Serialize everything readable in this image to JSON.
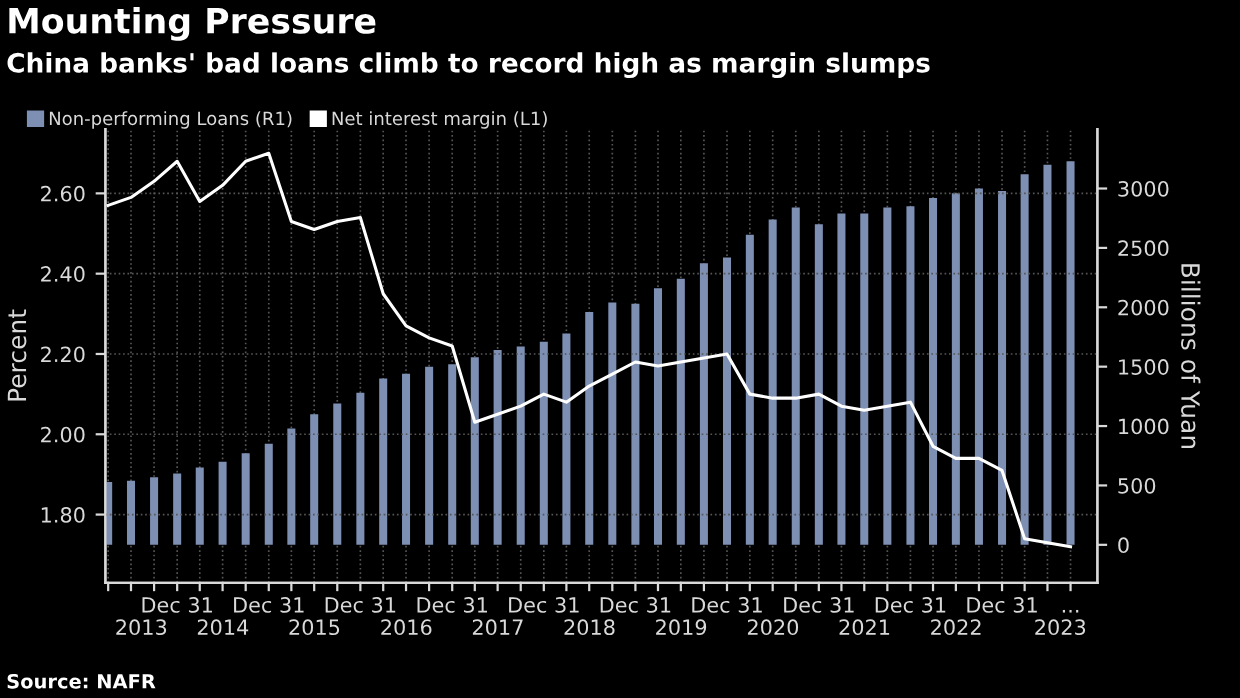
{
  "chart_data": {
    "type": "bar",
    "title": "Mounting Pressure",
    "subtitle": "China banks' bad loans climb to record high as margin slumps",
    "ylabel": "Percent",
    "y2label": "Billions of Yuan",
    "x": [
      "2013-03-31",
      "2013-06-30",
      "2013-09-30",
      "2013-12-31",
      "2014-03-31",
      "2014-06-30",
      "2014-09-30",
      "2014-12-31",
      "2015-03-31",
      "2015-06-30",
      "2015-09-30",
      "2015-12-31",
      "2016-03-31",
      "2016-06-30",
      "2016-09-30",
      "2016-12-31",
      "2017-03-31",
      "2017-06-30",
      "2017-09-30",
      "2017-12-31",
      "2018-03-31",
      "2018-06-30",
      "2018-09-30",
      "2018-12-31",
      "2019-03-31",
      "2019-06-30",
      "2019-09-30",
      "2019-12-31",
      "2020-03-31",
      "2020-06-30",
      "2020-09-30",
      "2020-12-31",
      "2021-03-31",
      "2021-06-30",
      "2021-09-30",
      "2021-12-31",
      "2022-03-31",
      "2022-06-30",
      "2022-09-30",
      "2022-12-31",
      "2023-03-31",
      "2023-06-30",
      "2023-09-30"
    ],
    "series": [
      {
        "name": "Non-performing Loans (R1)",
        "axis": "y2",
        "color": "#7d8fb3",
        "values": [
          530,
          540,
          570,
          600,
          650,
          700,
          770,
          850,
          980,
          1100,
          1190,
          1280,
          1400,
          1440,
          1500,
          1520,
          1580,
          1640,
          1670,
          1710,
          1780,
          1960,
          2040,
          2030,
          2160,
          2240,
          2370,
          2420,
          2610,
          2740,
          2840,
          2700,
          2790,
          2790,
          2840,
          2850,
          2920,
          2960,
          3000,
          2980,
          3120,
          3200,
          3230
        ]
      },
      {
        "name": "Net interest margin (L1)",
        "type": "line",
        "color": "#ffffff",
        "values": [
          2.57,
          2.59,
          2.63,
          2.68,
          2.58,
          2.62,
          2.68,
          2.7,
          2.53,
          2.51,
          2.53,
          2.54,
          2.35,
          2.27,
          2.24,
          2.22,
          2.03,
          2.05,
          2.07,
          2.1,
          2.08,
          2.12,
          2.15,
          2.18,
          2.17,
          2.18,
          2.19,
          2.2,
          2.1,
          2.09,
          2.09,
          2.1,
          2.07,
          2.06,
          2.07,
          2.08,
          1.97,
          1.94,
          1.94,
          1.91,
          1.74,
          1.73,
          1.72
        ]
      }
    ],
    "xlim": [
      "2013-03-20",
      "2024-01-15"
    ],
    "xticks": [
      {
        "value": "2013-03-31",
        "label": null
      },
      {
        "value": "2013-06-30",
        "label": null
      },
      {
        "value": "2013-09-30",
        "label": null
      },
      {
        "value": "2013-12-31",
        "label": "Dec 31"
      },
      {
        "value": "2014-03-31",
        "label": null
      },
      {
        "value": "2014-06-30",
        "label": null
      },
      {
        "value": "2014-09-30",
        "label": null
      },
      {
        "value": "2014-12-31",
        "label": "Dec 31"
      },
      {
        "value": "2015-03-31",
        "label": null
      },
      {
        "value": "2015-06-30",
        "label": null
      },
      {
        "value": "2015-09-30",
        "label": null
      },
      {
        "value": "2015-12-31",
        "label": "Dec 31"
      },
      {
        "value": "2016-03-31",
        "label": null
      },
      {
        "value": "2016-06-30",
        "label": null
      },
      {
        "value": "2016-09-30",
        "label": null
      },
      {
        "value": "2016-12-31",
        "label": "Dec 31"
      },
      {
        "value": "2017-03-31",
        "label": null
      },
      {
        "value": "2017-06-30",
        "label": null
      },
      {
        "value": "2017-09-30",
        "label": null
      },
      {
        "value": "2017-12-31",
        "label": "Dec 31"
      },
      {
        "value": "2018-03-31",
        "label": null
      },
      {
        "value": "2018-06-30",
        "label": null
      },
      {
        "value": "2018-09-30",
        "label": null
      },
      {
        "value": "2018-12-31",
        "label": "Dec 31"
      },
      {
        "value": "2019-03-31",
        "label": null
      },
      {
        "value": "2019-06-30",
        "label": null
      },
      {
        "value": "2019-09-30",
        "label": null
      },
      {
        "value": "2019-12-31",
        "label": "Dec 31"
      },
      {
        "value": "2020-03-31",
        "label": null
      },
      {
        "value": "2020-06-30",
        "label": null
      },
      {
        "value": "2020-09-30",
        "label": null
      },
      {
        "value": "2020-12-31",
        "label": "Dec 31"
      },
      {
        "value": "2021-03-31",
        "label": null
      },
      {
        "value": "2021-06-30",
        "label": null
      },
      {
        "value": "2021-09-30",
        "label": null
      },
      {
        "value": "2021-12-31",
        "label": "Dec 31"
      },
      {
        "value": "2022-03-31",
        "label": null
      },
      {
        "value": "2022-06-30",
        "label": null
      },
      {
        "value": "2022-09-30",
        "label": null
      },
      {
        "value": "2022-12-31",
        "label": "Dec 31"
      },
      {
        "value": "2023-03-31",
        "label": null
      },
      {
        "value": "2023-06-30",
        "label": null
      },
      {
        "value": "2023-09-30",
        "label": "..."
      }
    ],
    "x2lim": [
      "2013-03-20",
      "2024-01-15"
    ],
    "x2ticks": [
      {
        "value": "2013-08-10",
        "label": "2013"
      },
      {
        "value": "2014-07-01",
        "label": "2014"
      },
      {
        "value": "2015-07-01",
        "label": "2015"
      },
      {
        "value": "2016-07-01",
        "label": "2016"
      },
      {
        "value": "2017-07-01",
        "label": "2017"
      },
      {
        "value": "2018-07-01",
        "label": "2018"
      },
      {
        "value": "2019-07-01",
        "label": "2019"
      },
      {
        "value": "2020-07-01",
        "label": "2020"
      },
      {
        "value": "2021-07-01",
        "label": "2021"
      },
      {
        "value": "2022-07-01",
        "label": "2022"
      },
      {
        "value": "2023-08-20",
        "label": "2023"
      }
    ],
    "ylim": [
      1.63,
      2.76
    ],
    "yticks": [
      {
        "value": 1.8,
        "label": "1.80"
      },
      {
        "value": 2.0,
        "label": "2.00"
      },
      {
        "value": 2.2,
        "label": "2.20"
      },
      {
        "value": 2.4,
        "label": "2.40"
      },
      {
        "value": 2.6,
        "label": "2.60"
      }
    ],
    "y2lim": [
      -320,
      3500
    ],
    "y2ticks": [
      0,
      500,
      1000,
      1500,
      2000,
      2500,
      3000
    ],
    "grid": true,
    "legend": "top left",
    "line_style": "solid",
    "marker": "none",
    "annotations": [
      "Source: NAFR"
    ]
  }
}
